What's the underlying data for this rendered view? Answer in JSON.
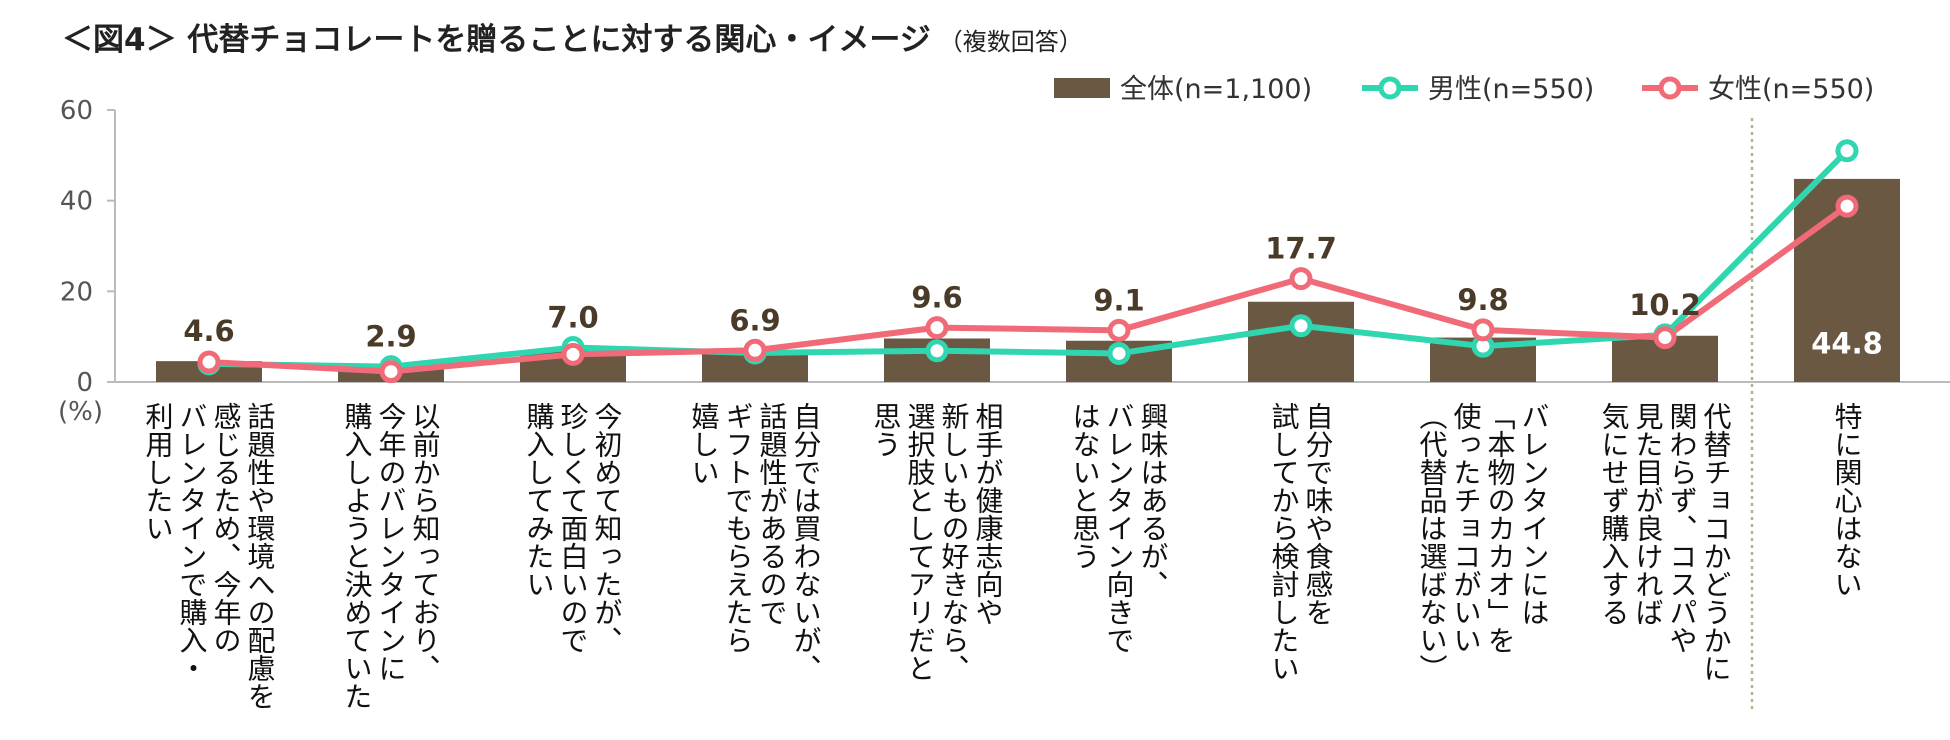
{
  "title": "＜図4＞ 代替チョコレートを贈ることに対する関心・イメージ",
  "subtitle": "（複数回答）",
  "chart_data": {
    "type": "bar",
    "title": "＜図4＞ 代替チョコレートを贈ることに対する関心・イメージ",
    "subtitle": "（複数回答）",
    "ylabel": "(%)",
    "ylim": [
      0,
      60
    ],
    "yticks": [
      0,
      20,
      40,
      60
    ],
    "grid": false,
    "legend_position": "top-right",
    "categories": [
      [
        "話題性や環境への配慮を",
        "感じるため、今年の",
        "バレンタインで購入・",
        "利用したい"
      ],
      [
        "以前から知っており、",
        "今年のバレンタインに",
        "購入しようと決めていた"
      ],
      [
        "今初めて知ったが、",
        "珍しくて面白いので",
        "購入してみたい"
      ],
      [
        "自分では買わないが、",
        "話題性があるので",
        "ギフトでもらえたら",
        "嬉しい"
      ],
      [
        "相手が健康志向や",
        "新しいもの好きなら、",
        "選択肢としてアリだと",
        "思う"
      ],
      [
        "興味はあるが、",
        "バレンタイン向きで",
        "はないと思う"
      ],
      [
        "自分で味や食感を",
        "試してから検討したい"
      ],
      [
        "バレンタインには",
        "「本物のカカオ」を",
        "使ったチョコがいい",
        "（代替品は選ばない）"
      ],
      [
        "代替チョコかどうかに",
        "関わらず、コスパや",
        "見た目が良ければ",
        "気にせず購入する"
      ],
      [
        "特に関心はない"
      ]
    ],
    "series": [
      {
        "name": "全体(n=1,100)",
        "type": "bar",
        "color": "#6b5843",
        "values": [
          4.6,
          2.9,
          7.0,
          6.9,
          9.6,
          9.1,
          17.7,
          9.8,
          10.2,
          44.8
        ],
        "labels": [
          "4.6",
          "2.9",
          "7.0",
          "6.9",
          "9.6",
          "9.1",
          "17.7",
          "9.8",
          "10.2",
          "44.8"
        ]
      },
      {
        "name": "男性(n=550)",
        "type": "line",
        "color": "#2fd6b0",
        "values": [
          4.0,
          3.4,
          7.6,
          6.4,
          6.9,
          6.3,
          12.4,
          7.9,
          10.4,
          51.0
        ]
      },
      {
        "name": "女性(n=550)",
        "type": "line",
        "color": "#f06a78",
        "values": [
          4.4,
          2.3,
          6.1,
          7.0,
          12.0,
          11.4,
          22.8,
          11.5,
          9.8,
          38.8
        ]
      }
    ]
  }
}
